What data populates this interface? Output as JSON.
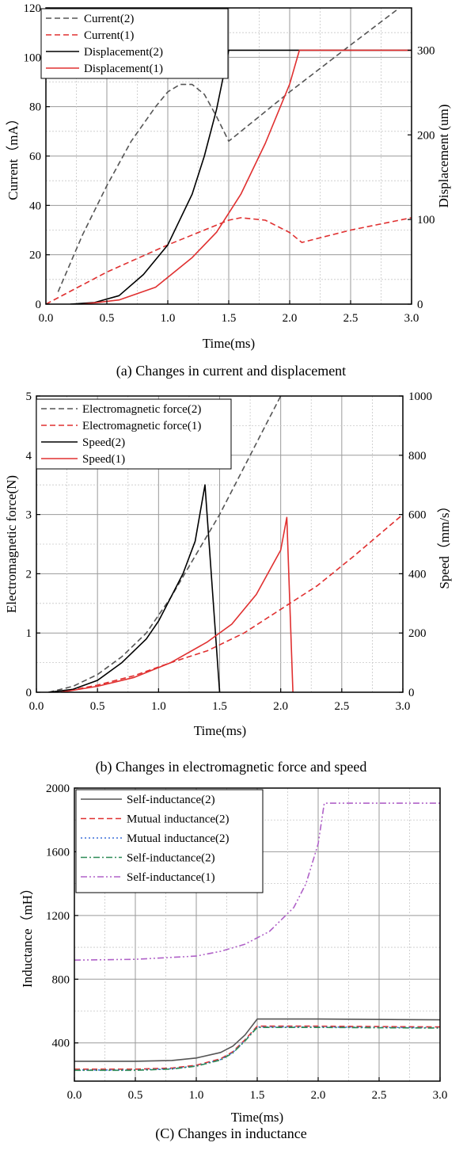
{
  "chart_data": [
    {
      "type": "line",
      "caption": "(a) Changes in current and displacement",
      "xlabel": "Time(ms)",
      "ylabel": "Current（mA）",
      "y2label": "Displacement (um)",
      "xlim": [
        0,
        3.0
      ],
      "ylim": [
        0,
        120
      ],
      "y2lim": [
        0,
        350
      ],
      "xticks": [
        "0.0",
        "0.5",
        "1.0",
        "1.5",
        "2.0",
        "2.5",
        "3.0"
      ],
      "yticks": [
        "0",
        "20",
        "40",
        "60",
        "80",
        "100",
        "120"
      ],
      "y2ticks": [
        "0",
        "100",
        "200",
        "300"
      ],
      "grid": true,
      "legend_position": "top-left",
      "series": [
        {
          "name": "Current(2)",
          "axis": "left",
          "style": "dashed",
          "color": "#555555",
          "x": [
            0.1,
            0.3,
            0.5,
            0.7,
            0.9,
            1.0,
            1.1,
            1.2,
            1.3,
            1.4,
            1.5,
            1.7,
            2.0,
            2.5,
            2.9
          ],
          "y": [
            5,
            28,
            48,
            66,
            80,
            86,
            89,
            89,
            85,
            76,
            66,
            74,
            86,
            105,
            120
          ]
        },
        {
          "name": "Current(1)",
          "axis": "left",
          "style": "dashed",
          "color": "#e03030",
          "x": [
            0.0,
            0.5,
            1.0,
            1.3,
            1.5,
            1.6,
            1.8,
            2.0,
            2.1,
            2.5,
            3.0
          ],
          "y": [
            0,
            13,
            24,
            30,
            34,
            35,
            34,
            29,
            25,
            30,
            35
          ]
        },
        {
          "name": "Displacement(2)",
          "axis": "right",
          "style": "solid",
          "color": "#000000",
          "x": [
            0.2,
            0.4,
            0.6,
            0.8,
            1.0,
            1.2,
            1.3,
            1.4,
            1.5,
            3.0
          ],
          "y": [
            0,
            2,
            10,
            35,
            70,
            130,
            175,
            230,
            300,
            300
          ]
        },
        {
          "name": "Displacement(1)",
          "axis": "right",
          "style": "solid",
          "color": "#e03030",
          "x": [
            0.3,
            0.6,
            0.9,
            1.2,
            1.4,
            1.6,
            1.8,
            2.0,
            2.08,
            3.0
          ],
          "y": [
            0,
            5,
            20,
            55,
            85,
            130,
            190,
            260,
            300,
            300
          ]
        }
      ]
    },
    {
      "type": "line",
      "caption": "(b) Changes in electromagnetic force and speed",
      "xlabel": "Time(ms)",
      "ylabel": "Electromagnetic force(N)",
      "y2label": "Speed（mm/s）",
      "xlim": [
        0,
        3.0
      ],
      "ylim": [
        0,
        5
      ],
      "y2lim": [
        0,
        1000
      ],
      "xticks": [
        "0.0",
        "0.5",
        "1.0",
        "1.5",
        "2.0",
        "2.5",
        "3.0"
      ],
      "yticks": [
        "0",
        "1",
        "2",
        "3",
        "4",
        "5"
      ],
      "y2ticks": [
        "0",
        "200",
        "400",
        "600",
        "800",
        "1000"
      ],
      "grid": true,
      "legend_position": "top-left",
      "series": [
        {
          "name": "Electromagnetic force(2)",
          "axis": "left",
          "style": "dashed",
          "color": "#555555",
          "x": [
            0.1,
            0.3,
            0.5,
            0.7,
            0.9,
            1.1,
            1.3,
            1.5,
            1.7,
            1.9,
            2.0
          ],
          "y": [
            0,
            0.1,
            0.3,
            0.6,
            1.0,
            1.6,
            2.3,
            3.0,
            3.8,
            4.6,
            5.0
          ]
        },
        {
          "name": "Electromagnetic force(1)",
          "axis": "left",
          "style": "dashed",
          "color": "#e03030",
          "x": [
            0.2,
            0.5,
            0.8,
            1.1,
            1.4,
            1.7,
            2.0,
            2.3,
            2.6,
            3.0
          ],
          "y": [
            0,
            0.12,
            0.28,
            0.5,
            0.7,
            1.0,
            1.4,
            1.8,
            2.3,
            3.0
          ]
        },
        {
          "name": "Speed(2)",
          "axis": "right",
          "style": "solid",
          "color": "#000000",
          "x": [
            0.1,
            0.3,
            0.5,
            0.7,
            0.9,
            1.0,
            1.1,
            1.2,
            1.3,
            1.38,
            1.5
          ],
          "y": [
            0,
            10,
            40,
            100,
            180,
            240,
            320,
            400,
            510,
            700,
            0
          ]
        },
        {
          "name": "Speed(1)",
          "axis": "right",
          "style": "solid",
          "color": "#e03030",
          "x": [
            0.2,
            0.5,
            0.8,
            1.1,
            1.4,
            1.6,
            1.8,
            2.0,
            2.05,
            2.1
          ],
          "y": [
            0,
            20,
            50,
            100,
            170,
            230,
            330,
            480,
            590,
            0
          ]
        }
      ]
    },
    {
      "type": "line",
      "caption": "(C) Changes in inductance",
      "xlabel": "Time(ms)",
      "ylabel": "Inductance（mH）",
      "xlim": [
        0,
        3.0
      ],
      "ylim": [
        160,
        2000
      ],
      "xticks": [
        "0.0",
        "0.5",
        "1.0",
        "1.5",
        "2.0",
        "2.5",
        "3.0"
      ],
      "yticks": [
        "400",
        "800",
        "1200",
        "1600",
        "2000"
      ],
      "grid": true,
      "legend_position": "top-left",
      "series": [
        {
          "name": "Self-inductance(2)",
          "style": "solid",
          "color": "#555555",
          "x": [
            0.0,
            0.5,
            0.8,
            1.0,
            1.2,
            1.3,
            1.4,
            1.5,
            2.0,
            3.0
          ],
          "y": [
            285,
            285,
            290,
            305,
            340,
            380,
            450,
            550,
            550,
            545
          ]
        },
        {
          "name": "Mutual inductance(2)",
          "style": "dashed",
          "color": "#e03030",
          "x": [
            0.0,
            0.5,
            0.8,
            1.0,
            1.2,
            1.3,
            1.4,
            1.5,
            2.0,
            3.0
          ],
          "y": [
            235,
            235,
            242,
            260,
            300,
            345,
            420,
            505,
            505,
            500
          ]
        },
        {
          "name": "Mutual inductance(2)",
          "style": "dotted",
          "color": "#3a6fd8",
          "x": [
            0.0,
            0.5,
            0.8,
            1.0,
            1.2,
            1.3,
            1.4,
            1.5,
            2.0,
            3.0
          ],
          "y": [
            230,
            230,
            238,
            256,
            296,
            340,
            415,
            500,
            500,
            495
          ]
        },
        {
          "name": "Self-inductance(2)",
          "style": "dashdot",
          "color": "#2e8b57",
          "x": [
            0.0,
            0.5,
            0.8,
            1.0,
            1.2,
            1.3,
            1.4,
            1.5,
            2.0,
            3.0
          ],
          "y": [
            228,
            228,
            236,
            254,
            293,
            337,
            412,
            497,
            497,
            493
          ]
        },
        {
          "name": "Self-inductance(1)",
          "style": "dashdotdot",
          "color": "#b062c8",
          "x": [
            0.0,
            0.5,
            1.0,
            1.2,
            1.4,
            1.6,
            1.8,
            1.9,
            2.0,
            2.05,
            3.0
          ],
          "y": [
            920,
            925,
            945,
            975,
            1020,
            1100,
            1250,
            1400,
            1650,
            1905,
            1905
          ]
        }
      ]
    }
  ]
}
